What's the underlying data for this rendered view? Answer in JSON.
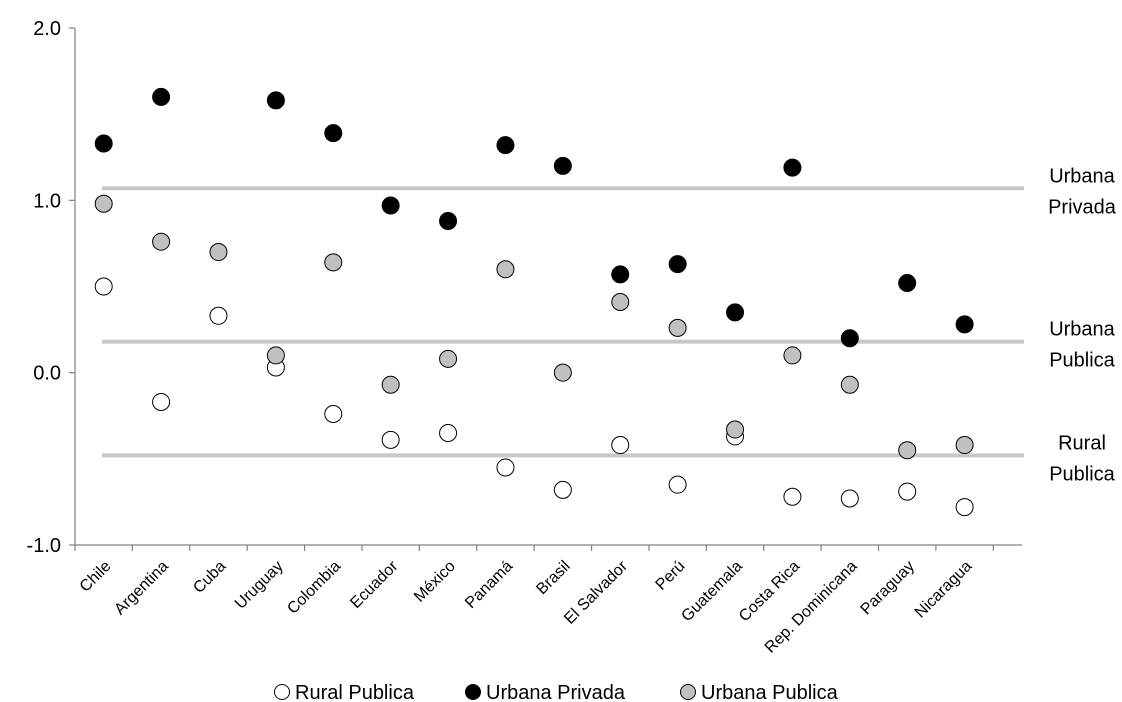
{
  "chart_data": {
    "type": "scatter",
    "categories": [
      "Chile",
      "Argentina",
      "Cuba",
      "Uruguay",
      "Colombia",
      "Ecuador",
      "México",
      "Panamá",
      "Brasil",
      "El Salvador",
      "Perú",
      "Guatemala",
      "Costa Rica",
      "Rep. Dominicana",
      "Paraguay",
      "Nicaragua"
    ],
    "series": [
      {
        "name": "Rural Publica",
        "fill": "#ffffff",
        "values": [
          0.5,
          -0.17,
          0.33,
          0.03,
          -0.24,
          -0.39,
          -0.35,
          -0.55,
          -0.68,
          -0.42,
          -0.65,
          -0.37,
          -0.72,
          -0.73,
          -0.69,
          -0.78
        ]
      },
      {
        "name": "Urbana Privada",
        "fill": "#000000",
        "values": [
          1.33,
          1.6,
          null,
          1.58,
          1.39,
          0.97,
          0.88,
          1.32,
          1.2,
          0.57,
          0.63,
          0.35,
          1.19,
          0.2,
          0.52,
          0.28
        ]
      },
      {
        "name": "Urbana Publica",
        "fill": "#c0c0c0",
        "values": [
          0.98,
          0.76,
          0.7,
          0.1,
          0.64,
          -0.07,
          0.08,
          0.6,
          0.0,
          0.41,
          0.26,
          -0.33,
          0.1,
          -0.07,
          -0.45,
          -0.42
        ]
      }
    ],
    "reference_lines": [
      {
        "value": 1.07,
        "label_lines": [
          "Urbana",
          "Privada"
        ]
      },
      {
        "value": 0.18,
        "label_lines": [
          "Urbana",
          "Publica"
        ]
      },
      {
        "value": -0.48,
        "label_lines": [
          "Rural",
          "Publica"
        ]
      }
    ],
    "y_ticks": [
      {
        "value": 2.0,
        "label": "2.0"
      },
      {
        "value": 1.0,
        "label": "1.0"
      },
      {
        "value": 0.0,
        "label": "0.0"
      },
      {
        "value": -1.0,
        "label": "-1.0"
      }
    ],
    "ylim": [
      -1.0,
      2.0
    ],
    "title": "",
    "xlabel": "",
    "ylabel": "",
    "grid": false,
    "legend_position": "bottom",
    "colors": {
      "axis": "#808080",
      "reference_line": "#c8c8c8",
      "marker_outline": "#000000"
    }
  }
}
